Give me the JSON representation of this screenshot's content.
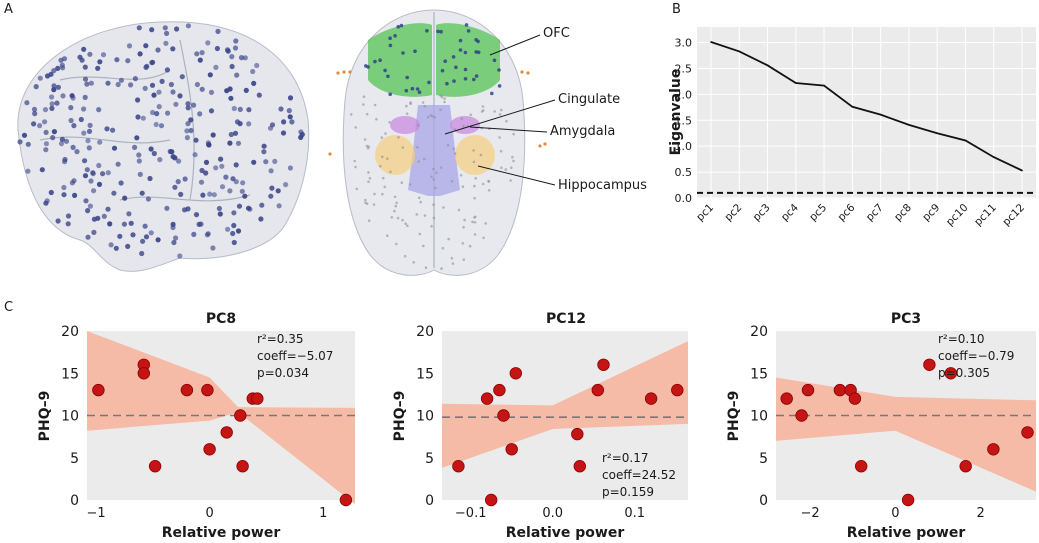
{
  "panel_labels": {
    "a": "A",
    "b": "B",
    "c": "C"
  },
  "brain": {
    "regions": [
      {
        "key": "ofc",
        "label": "OFC",
        "color": "#4cc04a"
      },
      {
        "key": "cingulate",
        "label": "Cingulate",
        "color": "#a9a4e8"
      },
      {
        "key": "amygdala",
        "label": "Amygdala",
        "color": "#c98be0"
      },
      {
        "key": "hippocampus",
        "label": "Hippocampus",
        "color": "#f5cf7d"
      }
    ],
    "electrode_color": "#3a4488",
    "brain_color": "#cfd3de"
  },
  "chart_data": [
    {
      "id": "eigen",
      "type": "line",
      "title": "",
      "xlabel": "",
      "ylabel": "Eigenvalue",
      "categories": [
        "pc1",
        "pc2",
        "pc3",
        "pc4",
        "pc5",
        "pc6",
        "pc7",
        "pc8",
        "pc9",
        "pc10",
        "pc11",
        "pc12"
      ],
      "values": [
        3.01,
        2.83,
        2.56,
        2.22,
        2.17,
        1.76,
        1.61,
        1.41,
        1.25,
        1.11,
        0.79,
        0.53
      ],
      "threshold": 0.1,
      "ylim": [
        0,
        3.3
      ],
      "yticks": [
        "0.0",
        "0.5",
        "1.0",
        "1.5",
        "2.0",
        "2.5",
        "3.0"
      ],
      "grid": true
    },
    {
      "id": "pc8",
      "type": "scatter",
      "title": "PC8",
      "xlabel": "Relative power",
      "ylabel": "PHQ–9",
      "xlim": [
        -1.08,
        1.28
      ],
      "ylim": [
        0,
        20
      ],
      "xticks": [
        {
          "v": -1,
          "t": "−1"
        },
        {
          "v": 0,
          "t": "0"
        },
        {
          "v": 1,
          "t": "1"
        }
      ],
      "yticks": [
        "0",
        "5",
        "10",
        "15",
        "20"
      ],
      "mean_line": 10,
      "points": [
        [
          -0.98,
          13
        ],
        [
          -0.58,
          16
        ],
        [
          -0.58,
          15
        ],
        [
          -0.48,
          4
        ],
        [
          -0.2,
          13
        ],
        [
          -0.02,
          13
        ],
        [
          0.0,
          6
        ],
        [
          0.15,
          8
        ],
        [
          0.27,
          10
        ],
        [
          0.29,
          4
        ],
        [
          0.38,
          12
        ],
        [
          0.42,
          12
        ],
        [
          1.2,
          0
        ]
      ],
      "band": [
        [
          -1.08,
          20.0,
          8.2
        ],
        [
          0.0,
          14.5,
          9.4
        ],
        [
          0.25,
          11.0,
          10.4
        ],
        [
          1.28,
          10.9,
          -0.5
        ]
      ],
      "stats": [
        "r²=0.35",
        "coeff=−5.07",
        "p=0.034"
      ],
      "stats_pos": "top-right"
    },
    {
      "id": "pc12",
      "type": "scatter",
      "title": "PC12",
      "xlabel": "Relative power",
      "ylabel": "PHQ–9",
      "xlim": [
        -0.135,
        0.165
      ],
      "ylim": [
        0,
        20
      ],
      "xticks": [
        {
          "v": -0.1,
          "t": "−0.1"
        },
        {
          "v": 0.0,
          "t": "0.0"
        },
        {
          "v": 0.1,
          "t": "0.1"
        }
      ],
      "yticks": [
        "0",
        "5",
        "10",
        "15",
        "20"
      ],
      "mean_line": 9.8,
      "points": [
        [
          -0.115,
          4
        ],
        [
          -0.08,
          12
        ],
        [
          -0.075,
          0
        ],
        [
          -0.065,
          13
        ],
        [
          -0.06,
          10
        ],
        [
          -0.05,
          6
        ],
        [
          -0.045,
          15
        ],
        [
          0.03,
          7.8
        ],
        [
          0.033,
          4
        ],
        [
          0.055,
          13
        ],
        [
          0.062,
          16
        ],
        [
          0.12,
          12
        ],
        [
          0.152,
          13
        ]
      ],
      "band": [
        [
          -0.135,
          3.8,
          11.4
        ],
        [
          0.0,
          8.4,
          11.2
        ],
        [
          0.165,
          9.0,
          18.8
        ]
      ],
      "stats": [
        "r²=0.17",
        "coeff=24.52",
        "p=0.159"
      ],
      "stats_pos": "bottom-right"
    },
    {
      "id": "pc3",
      "type": "scatter",
      "title": "PC3",
      "xlabel": "Relative power",
      "ylabel": "PHQ–9",
      "xlim": [
        -2.8,
        3.3
      ],
      "ylim": [
        0,
        20
      ],
      "xticks": [
        {
          "v": -2,
          "t": "−2"
        },
        {
          "v": 0,
          "t": "0"
        },
        {
          "v": 2,
          "t": "2"
        }
      ],
      "yticks": [
        "0",
        "5",
        "10",
        "15",
        "20"
      ],
      "mean_line": 10,
      "points": [
        [
          -2.55,
          12
        ],
        [
          -2.2,
          10
        ],
        [
          -2.05,
          13
        ],
        [
          -1.3,
          13
        ],
        [
          -1.05,
          13
        ],
        [
          -0.95,
          12
        ],
        [
          -0.8,
          4
        ],
        [
          0.3,
          0
        ],
        [
          0.8,
          16
        ],
        [
          1.3,
          15
        ],
        [
          1.65,
          4
        ],
        [
          2.3,
          6
        ],
        [
          3.1,
          8
        ]
      ],
      "band": [
        [
          -2.8,
          7.0,
          14.5
        ],
        [
          0.0,
          8.2,
          12.2
        ],
        [
          3.3,
          1.0,
          11.8
        ]
      ],
      "stats": [
        "r²=0.10",
        "coeff=−0.79",
        "p=0.305"
      ],
      "stats_pos": "top-right"
    }
  ]
}
